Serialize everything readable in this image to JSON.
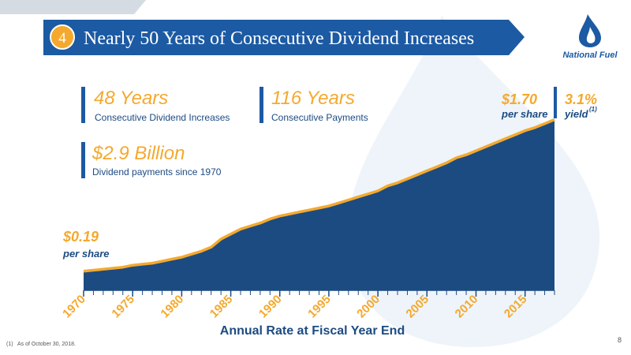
{
  "header": {
    "number": "4",
    "title": "Nearly 50 Years of Consecutive Dividend Increases",
    "logo": "National Fuel"
  },
  "stats": [
    {
      "value": "48 Years",
      "label": "Consecutive Dividend Increases"
    },
    {
      "value": "116 Years",
      "label": "Consecutive Payments"
    },
    {
      "value": "$2.9 Billion",
      "label": "Dividend payments since 1970"
    }
  ],
  "chart_data": {
    "type": "area",
    "x_label": "Annual Rate at Fiscal Year End",
    "x": [
      1970,
      1971,
      1972,
      1973,
      1974,
      1975,
      1976,
      1977,
      1978,
      1979,
      1980,
      1981,
      1982,
      1983,
      1984,
      1985,
      1986,
      1987,
      1988,
      1989,
      1990,
      1991,
      1992,
      1993,
      1994,
      1995,
      1996,
      1997,
      1998,
      1999,
      2000,
      2001,
      2002,
      2003,
      2004,
      2005,
      2006,
      2007,
      2008,
      2009,
      2010,
      2011,
      2012,
      2013,
      2014,
      2015,
      2016,
      2017,
      2018
    ],
    "values": [
      0.19,
      0.2,
      0.21,
      0.22,
      0.23,
      0.25,
      0.26,
      0.27,
      0.29,
      0.31,
      0.33,
      0.36,
      0.39,
      0.43,
      0.51,
      0.56,
      0.61,
      0.64,
      0.67,
      0.71,
      0.74,
      0.76,
      0.78,
      0.8,
      0.82,
      0.84,
      0.87,
      0.9,
      0.93,
      0.96,
      0.99,
      1.04,
      1.07,
      1.11,
      1.15,
      1.19,
      1.23,
      1.27,
      1.32,
      1.35,
      1.39,
      1.43,
      1.47,
      1.51,
      1.55,
      1.59,
      1.62,
      1.66,
      1.7
    ],
    "color": "#1c4b82",
    "line_color": "#f4a92e",
    "xlim": [
      1970,
      2018
    ],
    "xticks": [
      1970,
      1975,
      1980,
      1985,
      1990,
      1995,
      2000,
      2005,
      2010,
      2015
    ],
    "ylim": [
      0,
      1.87
    ],
    "annotations": {
      "start_value": "$0.19",
      "start_note": "per share",
      "end_value": "$1.70",
      "end_note": "per share",
      "yield": "3.1%",
      "yield_note": "yield",
      "yield_ref": "(1)"
    }
  },
  "footnote": {
    "ref": "(1)",
    "text": "As of October 30, 2018."
  },
  "page_number": "8"
}
